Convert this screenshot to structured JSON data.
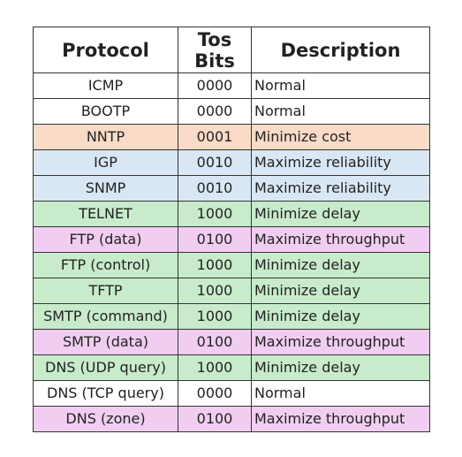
{
  "table": {
    "headers": {
      "protocol": "Protocol",
      "tos_line1": "Tos",
      "tos_line2": "Bits",
      "description": "Description"
    },
    "rows": [
      {
        "protocol": "ICMP",
        "bits": "0000",
        "description": "Normal",
        "category": "normal"
      },
      {
        "protocol": "BOOTP",
        "bits": "0000",
        "description": "Normal",
        "category": "normal"
      },
      {
        "protocol": "NNTP",
        "bits": "0001",
        "description": "Minimize cost",
        "category": "cost"
      },
      {
        "protocol": "IGP",
        "bits": "0010",
        "description": "Maximize reliability",
        "category": "reliability"
      },
      {
        "protocol": "SNMP",
        "bits": "0010",
        "description": "Maximize reliability",
        "category": "reliability"
      },
      {
        "protocol": "TELNET",
        "bits": "1000",
        "description": "Minimize delay",
        "category": "delay"
      },
      {
        "protocol": "FTP (data)",
        "bits": "0100",
        "description": "Maximize throughput",
        "category": "throughput"
      },
      {
        "protocol": "FTP (control)",
        "bits": "1000",
        "description": "Minimize delay",
        "category": "delay"
      },
      {
        "protocol": "TFTP",
        "bits": "1000",
        "description": "Minimize delay",
        "category": "delay"
      },
      {
        "protocol": "SMTP (command)",
        "bits": "1000",
        "description": "Minimize delay",
        "category": "delay"
      },
      {
        "protocol": "SMTP (data)",
        "bits": "0100",
        "description": "Maximize throughput",
        "category": "throughput"
      },
      {
        "protocol": "DNS (UDP query)",
        "bits": "1000",
        "description": "Minimize delay",
        "category": "delay"
      },
      {
        "protocol": "DNS (TCP query)",
        "bits": "0000",
        "description": "Normal",
        "category": "normal"
      },
      {
        "protocol": "DNS (zone)",
        "bits": "0100",
        "description": "Maximize throughput",
        "category": "throughput"
      }
    ]
  },
  "colors": {
    "normal": "#ffffff",
    "cost": "#fadbc7",
    "reliability": "#d9e7f4",
    "delay": "#c8ebcb",
    "throughput": "#f1cef1",
    "border": "#333333"
  }
}
